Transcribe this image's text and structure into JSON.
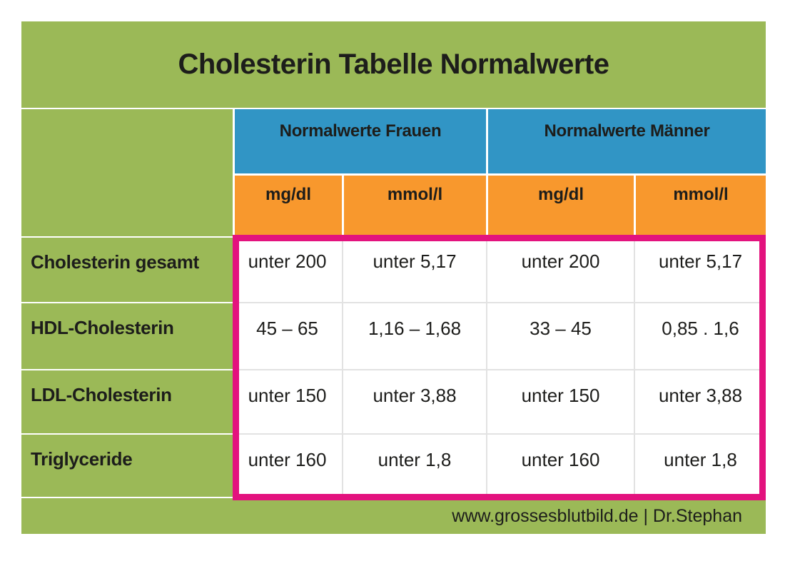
{
  "header": {
    "title": "Cholesterin Tabelle Normalwerte"
  },
  "footer": {
    "credit": "www.grossesblutbild.de | Dr.Stephan"
  },
  "colors": {
    "background_green": "#9bb957",
    "header_blue": "#3195c5",
    "unit_orange": "#f8982d",
    "highlight_pink": "#e3127e",
    "cell_white": "#ffffff",
    "text_dark": "#1d1d1b"
  },
  "table": {
    "group_headers": [
      {
        "label": "Normalwerte Frauen"
      },
      {
        "label": "Normalwerte Männer"
      }
    ],
    "unit_headers": [
      "mg/dl",
      "mmol/l",
      "mg/dl",
      "mmol/l"
    ],
    "rows": [
      {
        "label": "Cholesterin gesamt",
        "values": [
          "unter 200",
          "unter 5,17",
          "unter 200",
          "unter 5,17"
        ]
      },
      {
        "label": "HDL-Cholesterin",
        "values": [
          "45 – 65",
          "1,16 – 1,68",
          "33 – 45",
          "0,85 . 1,6"
        ]
      },
      {
        "label": "LDL-Cholesterin",
        "values": [
          "unter 150",
          "unter 3,88",
          "unter 150",
          "unter 3,88"
        ]
      },
      {
        "label": "Triglyceride",
        "values": [
          "unter 160",
          "unter 1,8",
          "unter 160",
          "unter 1,8"
        ]
      }
    ]
  },
  "chart_data": {
    "type": "table",
    "title": "Cholesterin Tabelle Normalwerte",
    "column_groups": [
      {
        "name": "Normalwerte Frauen",
        "columns": [
          "mg/dl",
          "mmol/l"
        ]
      },
      {
        "name": "Normalwerte Männer",
        "columns": [
          "mg/dl",
          "mmol/l"
        ]
      }
    ],
    "rows": [
      {
        "parameter": "Cholesterin gesamt",
        "frauen_mg_dl": "unter 200",
        "frauen_mmol_l": "unter 5,17",
        "maenner_mg_dl": "unter 200",
        "maenner_mmol_l": "unter 5,17"
      },
      {
        "parameter": "HDL-Cholesterin",
        "frauen_mg_dl": "45 – 65",
        "frauen_mmol_l": "1,16 – 1,68",
        "maenner_mg_dl": "33 – 45",
        "maenner_mmol_l": "0,85 . 1,6"
      },
      {
        "parameter": "LDL-Cholesterin",
        "frauen_mg_dl": "unter 150",
        "frauen_mmol_l": "unter 3,88",
        "maenner_mg_dl": "unter 150",
        "maenner_mmol_l": "unter 3,88"
      },
      {
        "parameter": "Triglyceride",
        "frauen_mg_dl": "unter 160",
        "frauen_mmol_l": "unter 1,8",
        "maenner_mg_dl": "unter 160",
        "maenner_mmol_l": "unter 1,8"
      }
    ],
    "source": "www.grossesblutbild.de | Dr.Stephan"
  }
}
